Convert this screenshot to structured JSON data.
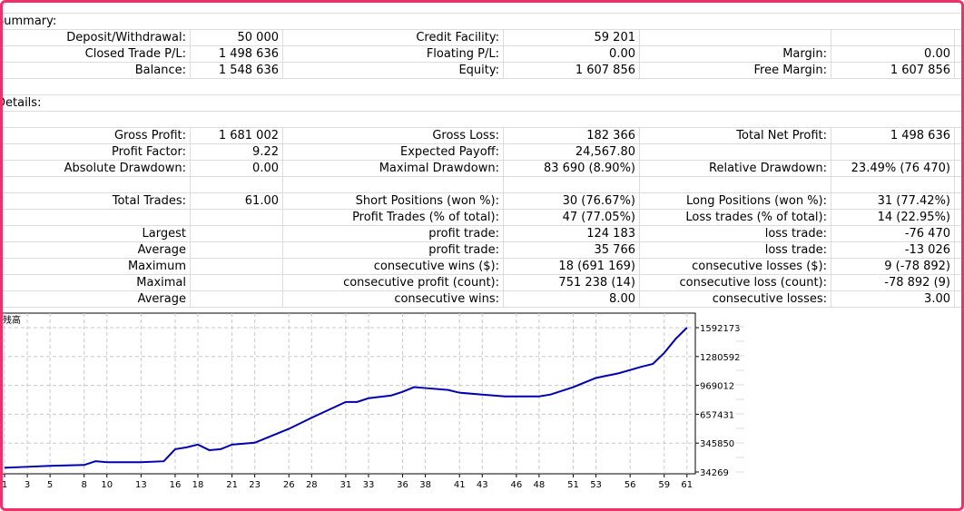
{
  "summary": {
    "title": "Summary:",
    "rows": [
      [
        "Deposit/Withdrawal:",
        "50 000",
        "Credit Facility:",
        "59 201",
        "",
        ""
      ],
      [
        "Closed Trade P/L:",
        "1 498 636",
        "Floating P/L:",
        "0.00",
        "Margin:",
        "0.00"
      ],
      [
        "Balance:",
        "1 548 636",
        "Equity:",
        "1 607 856",
        "Free Margin:",
        "1 607 856"
      ]
    ]
  },
  "details": {
    "title": "Details:",
    "rows": [
      [
        "Gross Profit:",
        "1 681 002",
        "Gross Loss:",
        "182 366",
        "Total Net Profit:",
        "1 498 636"
      ],
      [
        "Profit Factor:",
        "9.22",
        "Expected Payoff:",
        "24,567.80",
        "",
        ""
      ],
      [
        "Absolute Drawdown:",
        "0.00",
        "Maximal Drawdown:",
        "83 690 (8.90%)",
        "Relative Drawdown:",
        "23.49% (76 470)"
      ],
      [
        "",
        "",
        "",
        "",
        "",
        ""
      ],
      [
        "Total Trades:",
        "61.00",
        "Short Positions (won %):",
        "30 (76.67%)",
        "Long Positions (won %):",
        "31 (77.42%)"
      ],
      [
        "",
        "",
        "Profit Trades (% of total):",
        "47 (77.05%)",
        "Loss trades (% of total):",
        "14 (22.95%)"
      ],
      [
        "Largest",
        "",
        "profit trade:",
        "124 183",
        "loss trade:",
        "-76 470"
      ],
      [
        "Average",
        "",
        "profit trade:",
        "35 766",
        "loss trade:",
        "-13 026"
      ],
      [
        "Maximum",
        "",
        "consecutive wins ($):",
        "18 (691 169)",
        "consecutive losses ($):",
        "9 (-78 892)"
      ],
      [
        "Maximal",
        "",
        "consecutive profit (count):",
        "751 238 (14)",
        "consecutive loss (count):",
        "-78 892 (9)"
      ],
      [
        "Average",
        "",
        "consecutive wins:",
        "8.00",
        "consecutive losses:",
        "3.00"
      ]
    ]
  },
  "chart_data": {
    "type": "line",
    "title": "残高",
    "line_color": "#0000b0",
    "ylim": [
      34269,
      1592173
    ],
    "y_ticks": [
      "34269",
      "345850",
      "657431",
      "969012",
      "1280592",
      "1592173"
    ],
    "x_ticks": [
      "1",
      "3",
      "5",
      "8",
      "10",
      "13",
      "16",
      "18",
      "21",
      "23",
      "26",
      "28",
      "31",
      "33",
      "36",
      "38",
      "41",
      "43",
      "46",
      "48",
      "51",
      "53",
      "56",
      "59",
      "61"
    ],
    "x": [
      1,
      3,
      5,
      8,
      9,
      10,
      13,
      15,
      16,
      17,
      18,
      19,
      20,
      21,
      23,
      26,
      28,
      31,
      32,
      33,
      35,
      36,
      37,
      38,
      40,
      41,
      43,
      45,
      48,
      49,
      51,
      53,
      55,
      57,
      58,
      59,
      60,
      61
    ],
    "y": [
      80000,
      90000,
      100000,
      110000,
      150000,
      140000,
      140000,
      150000,
      280000,
      300000,
      330000,
      270000,
      280000,
      330000,
      350000,
      500000,
      620000,
      790000,
      790000,
      830000,
      860000,
      900000,
      950000,
      940000,
      920000,
      890000,
      870000,
      850000,
      850000,
      870000,
      950000,
      1050000,
      1100000,
      1170000,
      1200000,
      1320000,
      1470000,
      1592173
    ]
  }
}
